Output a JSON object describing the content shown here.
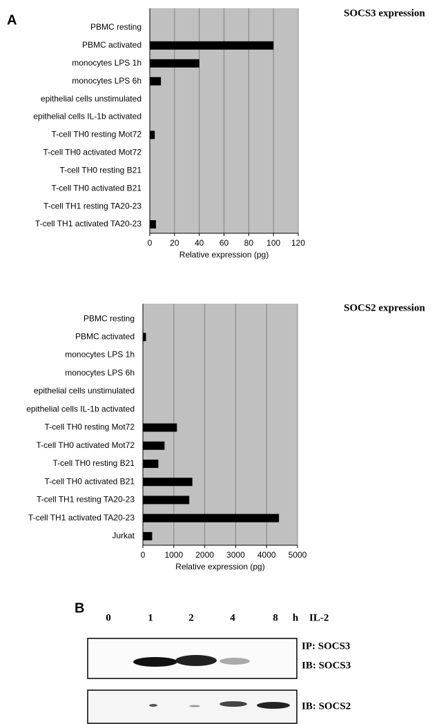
{
  "chart_data": [
    {
      "type": "hbar",
      "title": "SOCS3 expression",
      "panel": "A",
      "x_label": "Relative expression (pg)",
      "categories": [
        "PBMC resting",
        "PBMC activated",
        "monocytes LPS 1h",
        "monocytes LPS 6h",
        "epithelial cells unstimulated",
        "epithelial cells IL-1b activated",
        "T-cell TH0 resting Mot72",
        "T-cell TH0 activated Mot72",
        "T-cell TH0 resting B21",
        "T-cell TH0 activated B21",
        "T-cell TH1 resting TA20-23",
        "T-cell TH1 activated TA20-23"
      ],
      "values": [
        0,
        100,
        40,
        9,
        0,
        0,
        4,
        0,
        0,
        0,
        0,
        5
      ],
      "color": "#000000",
      "xlim": [
        0,
        120
      ],
      "xticks": [
        0,
        20,
        40,
        60,
        80,
        100,
        120
      ],
      "grid": true
    },
    {
      "type": "hbar",
      "title": "SOCS2 expression",
      "x_label": "Relative expression (pg)",
      "categories": [
        "PBMC resting",
        "PBMC activated",
        "monocytes LPS 1h",
        "monocytes LPS 6h",
        "epithelial cells unstimulated",
        "epithelial cells IL-1b activated",
        "T-cell TH0 resting Mot72",
        "T-cell TH0 activated Mot72",
        "T-cell TH0 resting B21",
        "T-cell TH0 activated B21",
        "T-cell TH1 resting TA20-23",
        "T-cell TH1 activated TA20-23",
        "Jurkat"
      ],
      "values": [
        0,
        100,
        0,
        0,
        0,
        0,
        1100,
        700,
        500,
        1600,
        1500,
        4400,
        300
      ],
      "color": "#000000",
      "xlim": [
        0,
        5000
      ],
      "xticks": [
        0,
        1000,
        2000,
        3000,
        4000,
        5000
      ],
      "grid": true
    }
  ],
  "blot": {
    "panel": "B",
    "lanes": [
      "0",
      "1",
      "2",
      "4",
      "8"
    ],
    "unit": "h",
    "treatment": "IL-2",
    "rows": [
      [
        "IP: SOCS3",
        "IB: SOCS3"
      ],
      [
        "IB: SOCS2"
      ]
    ]
  }
}
